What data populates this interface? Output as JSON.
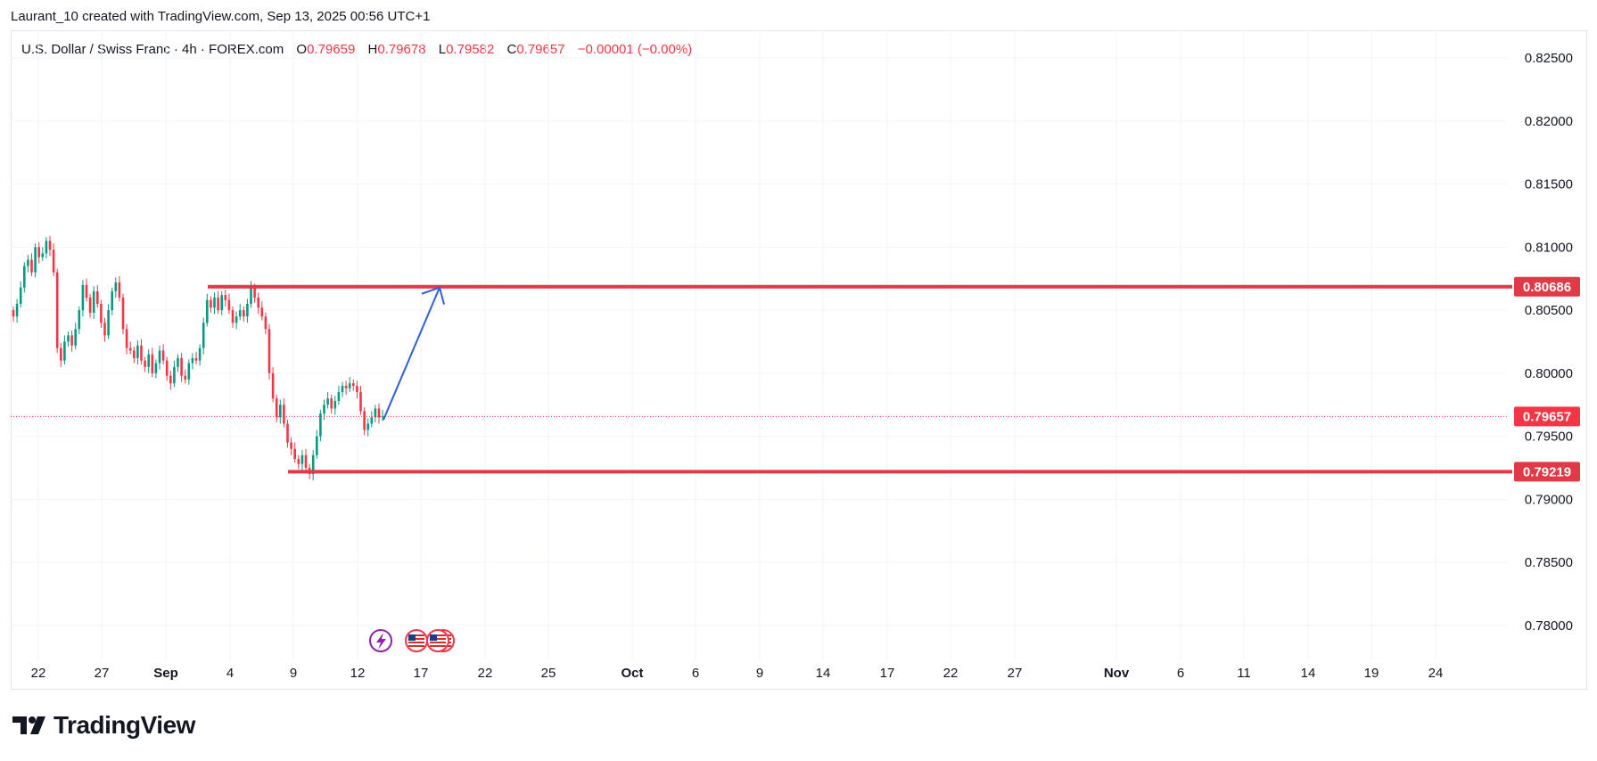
{
  "header": {
    "credit": "Laurant_10 created with TradingView.com, Sep 13, 2025 00:56 UTC+1"
  },
  "legend": {
    "symbol": "U.S. Dollar / Swiss Franc · 4h · FOREX.com",
    "open_label": "O",
    "open": "0.79659",
    "high_label": "H",
    "high": "0.79678",
    "low_label": "L",
    "low": "0.79582",
    "close_label": "C",
    "close": "0.79657",
    "change": "−0.00001 (−0.00%)"
  },
  "brand": {
    "name": "TradingView"
  },
  "colors": {
    "up": "#089981",
    "down": "#f23645",
    "level": "#e03a47",
    "arrow": "#2f5fd8"
  },
  "chart_data": {
    "type": "candlestick",
    "y_ticks": [
      "0.82500",
      "0.82000",
      "0.81500",
      "0.81000",
      "0.80500",
      "0.80000",
      "0.79500",
      "0.79000",
      "0.78500",
      "0.78000"
    ],
    "ylim": [
      0.7773,
      0.8272
    ],
    "x_ticks": [
      {
        "label": "22",
        "bold": false
      },
      {
        "label": "27",
        "bold": false
      },
      {
        "label": "Sep",
        "bold": true
      },
      {
        "label": "4",
        "bold": false
      },
      {
        "label": "9",
        "bold": false
      },
      {
        "label": "12",
        "bold": false
      },
      {
        "label": "17",
        "bold": false
      },
      {
        "label": "22",
        "bold": false
      },
      {
        "label": "25",
        "bold": false
      },
      {
        "label": "Oct",
        "bold": true
      },
      {
        "label": "6",
        "bold": false
      },
      {
        "label": "9",
        "bold": false
      },
      {
        "label": "14",
        "bold": false
      },
      {
        "label": "17",
        "bold": false
      },
      {
        "label": "22",
        "bold": false
      },
      {
        "label": "27",
        "bold": false
      },
      {
        "label": "Nov",
        "bold": true
      },
      {
        "label": "6",
        "bold": false
      },
      {
        "label": "11",
        "bold": false
      },
      {
        "label": "14",
        "bold": false
      },
      {
        "label": "19",
        "bold": false
      },
      {
        "label": "24",
        "bold": false
      }
    ],
    "last_price": "0.79657",
    "levels": [
      {
        "label": "0.80686",
        "value": 0.80686,
        "x_start_day": "Sep 2"
      },
      {
        "label": "0.79219",
        "value": 0.79219,
        "x_start_day": "Sep 8"
      }
    ],
    "projection": {
      "from": 0.7963,
      "to": 0.8068
    },
    "close_series": [
      0.8045,
      0.8055,
      0.8068,
      0.8085,
      0.809,
      0.808,
      0.81,
      0.8092,
      0.8095,
      0.8105,
      0.8098,
      0.808,
      0.802,
      0.801,
      0.8025,
      0.803,
      0.8022,
      0.8035,
      0.805,
      0.807,
      0.806,
      0.8048,
      0.8065,
      0.8055,
      0.804,
      0.803,
      0.805,
      0.8065,
      0.8072,
      0.806,
      0.8035,
      0.802,
      0.8018,
      0.8012,
      0.8022,
      0.801,
      0.8005,
      0.8015,
      0.8,
      0.8008,
      0.8018,
      0.801,
      0.7998,
      0.7992,
      0.8005,
      0.8012,
      0.7998,
      0.7995,
      0.8008,
      0.8012,
      0.801,
      0.802,
      0.804,
      0.8058,
      0.8052,
      0.806,
      0.805,
      0.8062,
      0.8058,
      0.805,
      0.804,
      0.8045,
      0.805,
      0.8045,
      0.8055,
      0.8068,
      0.806,
      0.8052,
      0.8045,
      0.8035,
      0.8,
      0.798,
      0.7965,
      0.7975,
      0.796,
      0.7945,
      0.794,
      0.7932,
      0.7928,
      0.7935,
      0.7925,
      0.792,
      0.7935,
      0.795,
      0.7968,
      0.7975,
      0.798,
      0.7972,
      0.7978,
      0.7985,
      0.799,
      0.7988,
      0.7992,
      0.799,
      0.7985,
      0.797,
      0.7955,
      0.796,
      0.7965,
      0.7972,
      0.7965,
      0.7966
    ],
    "start_label": "Aug 20"
  }
}
